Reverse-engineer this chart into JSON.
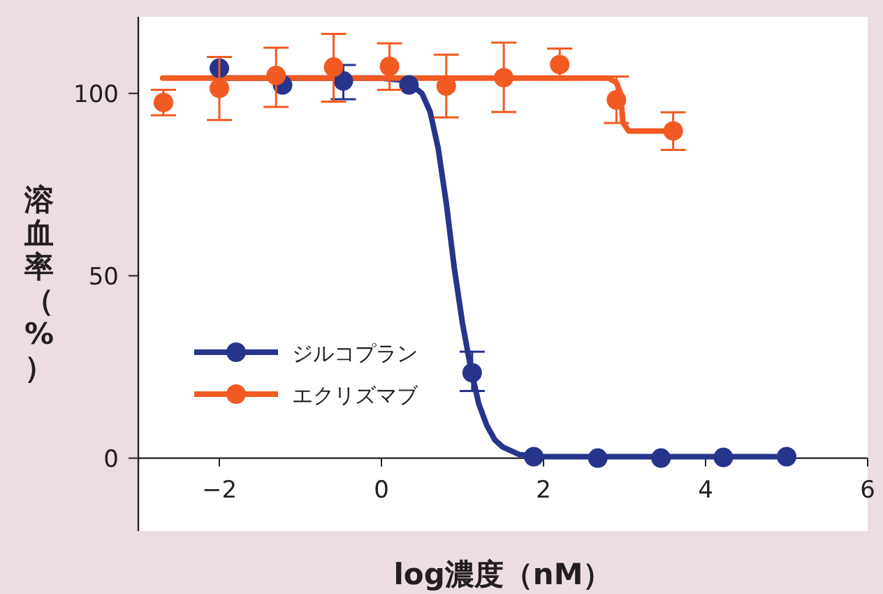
{
  "chart_data": {
    "type": "scatter",
    "xlabel": "log濃度（nM）",
    "ylabel": "溶血率（%）",
    "xlim": [
      -3,
      6
    ],
    "ylim": [
      -20,
      121
    ],
    "xticks": [
      {
        "value": -2,
        "label": "−2"
      },
      0,
      2,
      4,
      6
    ],
    "yticks": [
      0,
      50,
      100
    ],
    "grid": false,
    "legend": "left",
    "marker": "circle",
    "line_style": "solid",
    "series": [
      {
        "name": "ジルコプラン",
        "color": "#27348b",
        "x": [
          -2.0,
          -1.22,
          -0.47,
          0.34,
          1.12,
          1.88,
          2.67,
          3.45,
          4.22,
          5.0
        ],
        "values": [
          106.9,
          102.3,
          103.4,
          102.3,
          23.4,
          0.4,
          0,
          0,
          0.2,
          0.4
        ],
        "errors": [
          null,
          null,
          [
            98.4,
            107.8
          ],
          null,
          [
            18.4,
            29.2
          ],
          null,
          null,
          null,
          null,
          null
        ]
      },
      {
        "type": "line",
        "marker": "none",
        "color": "#27348b",
        "x": [
          -2,
          0,
          0.3,
          0.5,
          0.6,
          0.7,
          0.8,
          0.9,
          1.0,
          1.1,
          1.2,
          1.3,
          1.4,
          1.5,
          1.7,
          2,
          5
        ],
        "values": [
          104.2,
          104.2,
          103.5,
          100,
          95,
          85,
          70,
          52,
          37,
          25,
          15,
          9,
          5,
          3,
          1,
          0.4,
          0.4
        ]
      },
      {
        "name": "エクリズマブ",
        "color": "#f15a22",
        "x": [
          -2.69,
          -2.0,
          -1.3,
          -0.59,
          0.1,
          0.8,
          1.51,
          2.2,
          2.9,
          3.6
        ],
        "values": [
          97.5,
          101.4,
          104.9,
          107.2,
          107.4,
          102.0,
          104.3,
          107.9,
          98.2,
          89.7
        ],
        "errors": [
          [
            94.0,
            101.0
          ],
          [
            92.7,
            110.0
          ],
          [
            96.3,
            112.5
          ],
          [
            97.7,
            116.3
          ],
          [
            101.0,
            113.7
          ],
          [
            93.4,
            110.6
          ],
          [
            94.9,
            113.9
          ],
          [
            103.8,
            112.3
          ],
          [
            91.9,
            104.6
          ],
          [
            84.5,
            94.8
          ]
        ]
      },
      {
        "type": "line",
        "marker": "none",
        "color": "#f15a22",
        "x": [
          -2.7,
          2.8,
          2.9,
          2.95,
          2.98,
          3.05,
          3.6
        ],
        "values": [
          104.2,
          104.2,
          103,
          100,
          92,
          89.7,
          89.7
        ]
      }
    ]
  }
}
